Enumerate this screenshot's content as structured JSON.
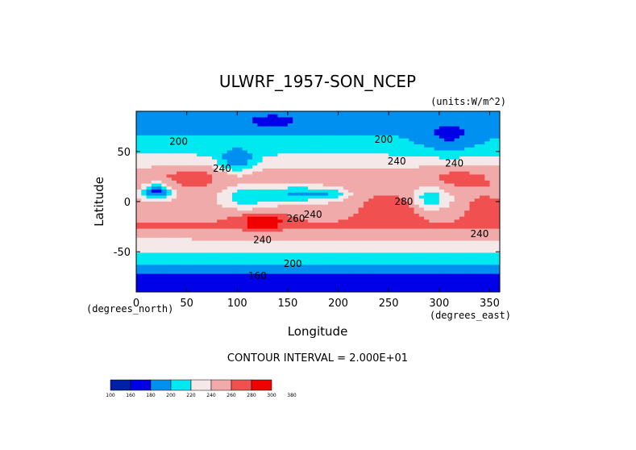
{
  "chart_data": {
    "type": "heatmap",
    "title": "ULWRF_1957-SON_NCEP",
    "units": "(units:W/m^2)",
    "xlabel": "Longitude",
    "ylabel": "Latitude",
    "x_units": "(degrees_east)",
    "y_units": "(degrees_north)",
    "xlim": [
      0,
      360
    ],
    "ylim": [
      -90,
      90
    ],
    "xticks": [
      "0",
      "50",
      "100",
      "150",
      "200",
      "250",
      "300",
      "350"
    ],
    "yticks": [
      "50",
      "0",
      "-50"
    ],
    "contour_interval_text": "CONTOUR INTERVAL = 2.000E+01",
    "contour_labels": [
      {
        "text": "200",
        "lon": 42,
        "lat": 60
      },
      {
        "text": "200",
        "lon": 245,
        "lat": 62
      },
      {
        "text": "240",
        "lon": 85,
        "lat": 33
      },
      {
        "text": "240",
        "lon": 258,
        "lat": 40
      },
      {
        "text": "240",
        "lon": 315,
        "lat": 38
      },
      {
        "text": "260",
        "lon": 158,
        "lat": -17
      },
      {
        "text": "240",
        "lon": 175,
        "lat": -13
      },
      {
        "text": "280",
        "lon": 265,
        "lat": 0
      },
      {
        "text": "240",
        "lon": 125,
        "lat": -38
      },
      {
        "text": "240",
        "lon": 340,
        "lat": -32
      },
      {
        "text": "200",
        "lon": 155,
        "lat": -62
      },
      {
        "text": "160",
        "lon": 120,
        "lat": -74
      }
    ],
    "colorbar": {
      "levels": [
        "100",
        "160",
        "180",
        "200",
        "220",
        "240",
        "260",
        "280",
        "300",
        "380"
      ],
      "colors": [
        "#0020a8",
        "#0000e8",
        "#0090f0",
        "#00e8f0",
        "#f5e8e8",
        "#f0aaaa",
        "#f05050",
        "#f00000"
      ]
    },
    "zonal_base": [
      {
        "lat": 90,
        "value": 192
      },
      {
        "lat": 72,
        "value": 192
      },
      {
        "lat": 66,
        "value": 200
      },
      {
        "lat": 55,
        "value": 210
      },
      {
        "lat": 45,
        "value": 222
      },
      {
        "lat": 35,
        "value": 238
      },
      {
        "lat": 27,
        "value": 250
      },
      {
        "lat": 15,
        "value": 256
      },
      {
        "lat": 5,
        "value": 250
      },
      {
        "lat": -5,
        "value": 250
      },
      {
        "lat": -15,
        "value": 258
      },
      {
        "lat": -25,
        "value": 262
      },
      {
        "lat": -35,
        "value": 244
      },
      {
        "lat": -45,
        "value": 228
      },
      {
        "lat": -55,
        "value": 212
      },
      {
        "lat": -62,
        "value": 202
      },
      {
        "lat": -70,
        "value": 185
      },
      {
        "lat": -80,
        "value": 168
      },
      {
        "lat": -90,
        "value": 160
      }
    ],
    "anomalies": [
      {
        "lon": 20,
        "lat": 10,
        "rlon": 14,
        "rlat": 8,
        "value": -80
      },
      {
        "lon": 110,
        "lat": 5,
        "rlon": 25,
        "rlat": 12,
        "value": -45
      },
      {
        "lon": 160,
        "lat": 8,
        "rlon": 30,
        "rlat": 9,
        "value": -55
      },
      {
        "lon": 195,
        "lat": 8,
        "rlon": 18,
        "rlat": 6,
        "value": -35
      },
      {
        "lon": 290,
        "lat": 3,
        "rlon": 20,
        "rlat": 12,
        "value": -45
      },
      {
        "lon": 125,
        "lat": -20,
        "rlon": 20,
        "rlat": 8,
        "value": 45
      },
      {
        "lon": 255,
        "lat": -5,
        "rlon": 30,
        "rlat": 12,
        "value": 28
      },
      {
        "lon": 345,
        "lat": -5,
        "rlon": 18,
        "rlat": 12,
        "value": 22
      },
      {
        "lon": 55,
        "lat": 25,
        "rlon": 30,
        "rlat": 10,
        "value": 18
      },
      {
        "lon": 100,
        "lat": 40,
        "rlon": 18,
        "rlat": 12,
        "value": -45
      },
      {
        "lon": 310,
        "lat": 62,
        "rlon": 30,
        "rlat": 15,
        "value": -25
      },
      {
        "lon": 135,
        "lat": 80,
        "rlon": 30,
        "rlat": 8,
        "value": -20
      },
      {
        "lon": 320,
        "lat": 25,
        "rlon": 35,
        "rlat": 10,
        "value": 15
      }
    ]
  }
}
